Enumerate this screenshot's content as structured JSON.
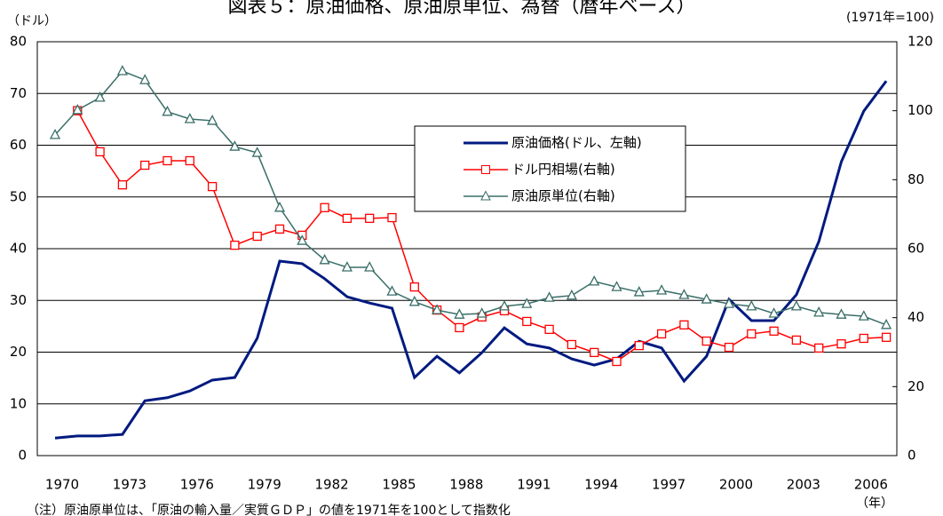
{
  "chart_data": {
    "type": "line",
    "title": "図表５：原油価格、原油原単位、為替（暦年ベース）",
    "y_label": "（ドル）",
    "y2_label": "(1971年=100)",
    "x_label": "（年）",
    "note": "（注）原油原単位は、「原油の輸入量／実質ＧＤＰ」の値を1971年を100として指数化",
    "categories": [
      "1970",
      null,
      null,
      "1973",
      null,
      null,
      "1976",
      null,
      null,
      "1979",
      null,
      null,
      "1982",
      null,
      null,
      "1985",
      null,
      null,
      "1988",
      null,
      null,
      "1991",
      null,
      null,
      "1994",
      null,
      null,
      "1997",
      null,
      null,
      "2000",
      null,
      null,
      "2003",
      null,
      null,
      "2006",
      null
    ],
    "ylim": [
      0,
      80
    ],
    "yticks": [
      0,
      10,
      20,
      30,
      40,
      50,
      60,
      70,
      80
    ],
    "y2lim": [
      0,
      120
    ],
    "y2ticks": [
      0,
      20,
      40,
      60,
      80,
      100,
      120
    ],
    "grid": true,
    "series": [
      {
        "name": "原油価格(ドル、左軸)",
        "color": "#001a80",
        "marker": "none",
        "values": [
          3.4,
          3.8,
          3.8,
          4.1,
          10.6,
          11.2,
          12.5,
          14.6,
          15.1,
          22.7,
          37.6,
          37.1,
          34.2,
          30.7,
          29.5,
          28.5,
          15.1,
          19.2,
          16.0,
          19.9,
          24.7,
          21.6,
          20.8,
          18.7,
          17.5,
          18.7,
          22.1,
          20.8,
          14.4,
          19.2,
          30.2,
          26.1,
          26.1,
          31.1,
          41.4,
          56.8,
          66.6,
          72.4
        ]
      },
      {
        "name": "ドル円相場(右軸)",
        "color": "#ff0000",
        "marker": "square",
        "axis": "y2",
        "values": [
          null,
          100,
          88.1,
          78.5,
          84.2,
          85.5,
          85.5,
          78.0,
          61.0,
          63.6,
          65.7,
          63.9,
          71.9,
          68.8,
          68.8,
          69.0,
          48.9,
          42.2,
          37.1,
          40.2,
          42.0,
          38.9,
          36.6,
          32.2,
          29.9,
          27.3,
          31.9,
          35.3,
          37.9,
          33.2,
          31.4,
          35.3,
          36.1,
          33.5,
          31.2,
          32.4,
          34.0,
          34.3
        ]
      },
      {
        "name": "原油原単位(右軸)",
        "color": "#3a6e68",
        "marker": "triangle",
        "axis": "y2",
        "values": [
          93.0,
          100.2,
          103.8,
          111.5,
          108.9,
          99.7,
          97.6,
          97.1,
          89.6,
          87.8,
          71.9,
          62.3,
          56.7,
          54.6,
          54.6,
          47.6,
          44.6,
          42.2,
          40.9,
          41.2,
          43.3,
          44.0,
          45.8,
          46.4,
          50.5,
          48.9,
          47.4,
          47.9,
          46.6,
          45.3,
          44.0,
          43.3,
          41.2,
          43.3,
          41.5,
          40.9,
          40.4,
          37.9
        ]
      }
    ]
  }
}
